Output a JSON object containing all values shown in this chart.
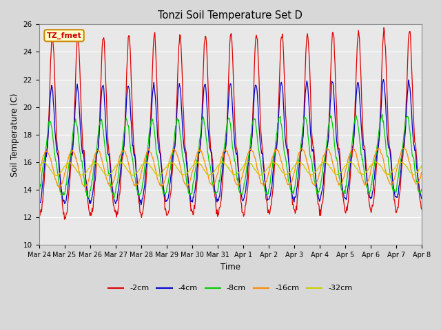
{
  "title": "Tonzi Soil Temperature Set D",
  "xlabel": "Time",
  "ylabel": "Soil Temperature (C)",
  "ylim": [
    10,
    26
  ],
  "yticks": [
    10,
    12,
    14,
    16,
    18,
    20,
    22,
    24,
    26
  ],
  "annotation_text": "TZ_fmet",
  "annotation_bbox_facecolor": "#ffffcc",
  "annotation_bbox_edgecolor": "#cc8800",
  "series_colors": {
    "-2cm": "#dd0000",
    "-4cm": "#0000cc",
    "-8cm": "#00cc00",
    "-16cm": "#ff8800",
    "-32cm": "#cccc00"
  },
  "background_color": "#d8d8d8",
  "plot_background": "#e8e8e8",
  "x_tick_labels": [
    "Mar 24",
    "Mar 25",
    "Mar 26",
    "Mar 27",
    "Mar 28",
    "Mar 29",
    "Mar 30",
    "Mar 31",
    "Apr 1",
    "Apr 2",
    "Apr 3",
    "Apr 4",
    "Apr 5",
    "Apr 6",
    "Apr 7",
    "Apr 8"
  ],
  "legend_entries": [
    "-2cm",
    "-4cm",
    "-8cm",
    "-16cm",
    "-32cm"
  ]
}
